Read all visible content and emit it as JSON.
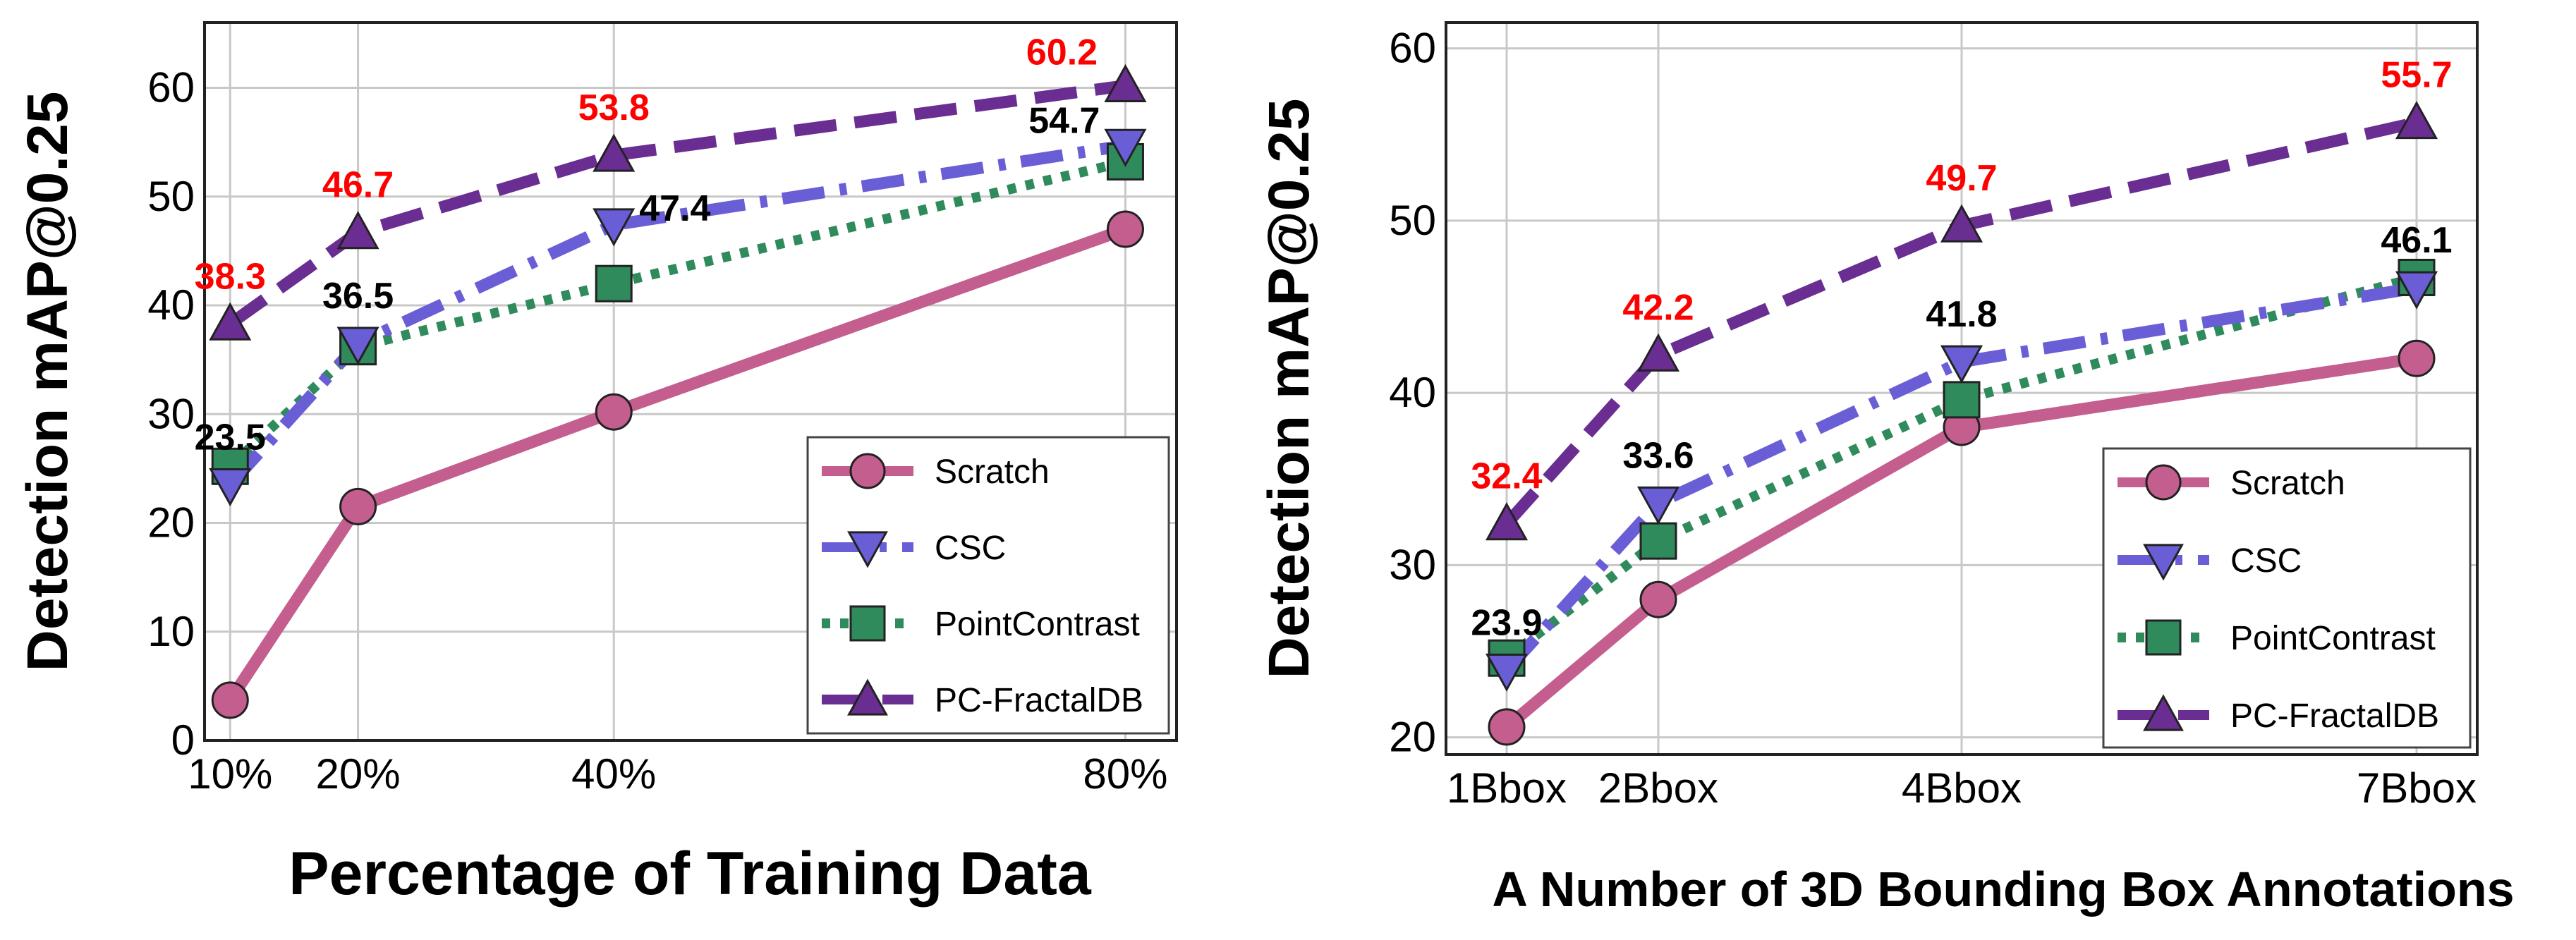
{
  "chart_data": [
    {
      "type": "line",
      "xlabel": "Percentage of Training Data",
      "ylabel": "Detection mAP@0.25",
      "categories": [
        "10%",
        "20%",
        "40%",
        "80%"
      ],
      "x": [
        10,
        20,
        40,
        80
      ],
      "xlim": [
        8,
        84
      ],
      "ylim": [
        0,
        66
      ],
      "yticks": [
        0,
        10,
        20,
        30,
        40,
        50,
        60
      ],
      "grid": true,
      "legend_position": "lower-right",
      "series": [
        {
          "name": "Scratch",
          "values": [
            3.7,
            21.5,
            30.2,
            47.0
          ]
        },
        {
          "name": "CSC",
          "values": [
            23.5,
            36.5,
            47.4,
            54.7
          ]
        },
        {
          "name": "PointContrast",
          "values": [
            25.2,
            36.2,
            42.0,
            53.2
          ]
        },
        {
          "name": "PC-FractalDB",
          "values": [
            38.3,
            46.7,
            53.8,
            60.2
          ]
        }
      ],
      "annotations": [
        {
          "text": "38.3",
          "color": "red",
          "x": 10,
          "y": 38.3,
          "place": "above"
        },
        {
          "text": "46.7",
          "color": "red",
          "x": 20,
          "y": 46.7,
          "place": "above"
        },
        {
          "text": "53.8",
          "color": "red",
          "x": 40,
          "y": 53.8,
          "place": "above"
        },
        {
          "text": "60.2",
          "color": "red",
          "x": 80,
          "y": 60.2,
          "place": "above-left"
        },
        {
          "text": "23.5",
          "color": "black",
          "x": 10,
          "y": 23.5,
          "place": "above"
        },
        {
          "text": "36.5",
          "color": "black",
          "x": 20,
          "y": 36.5,
          "place": "above"
        },
        {
          "text": "47.4",
          "color": "black",
          "x": 40,
          "y": 47.4,
          "place": "right"
        },
        {
          "text": "54.7",
          "color": "black",
          "x": 80,
          "y": 54.7,
          "place": "left"
        }
      ]
    },
    {
      "type": "line",
      "xlabel": "A Number of 3D Bounding Box Annotations",
      "ylabel": "Detection mAP@0.25",
      "categories": [
        "1Bbox",
        "2Bbox",
        "4Bbox",
        "7Bbox"
      ],
      "x": [
        1,
        2,
        4,
        7
      ],
      "xlim": [
        0.6,
        7.4
      ],
      "ylim": [
        19,
        61.5
      ],
      "yticks": [
        20,
        30,
        40,
        50,
        60
      ],
      "grid": true,
      "legend_position": "lower-right",
      "series": [
        {
          "name": "Scratch",
          "values": [
            20.6,
            28.0,
            38.0,
            42.0
          ]
        },
        {
          "name": "CSC",
          "values": [
            23.9,
            33.6,
            41.8,
            46.1
          ]
        },
        {
          "name": "PointContrast",
          "values": [
            24.6,
            31.4,
            39.6,
            46.7
          ]
        },
        {
          "name": "PC-FractalDB",
          "values": [
            32.4,
            42.2,
            49.7,
            55.7
          ]
        }
      ],
      "annotations": [
        {
          "text": "32.4",
          "color": "red",
          "x": 1,
          "y": 32.4,
          "place": "above"
        },
        {
          "text": "42.2",
          "color": "red",
          "x": 2,
          "y": 42.2,
          "place": "above"
        },
        {
          "text": "49.7",
          "color": "red",
          "x": 4,
          "y": 49.7,
          "place": "above"
        },
        {
          "text": "55.7",
          "color": "red",
          "x": 7,
          "y": 55.7,
          "place": "above"
        },
        {
          "text": "23.9",
          "color": "black",
          "x": 1,
          "y": 23.9,
          "place": "above"
        },
        {
          "text": "33.6",
          "color": "black",
          "x": 2,
          "y": 33.6,
          "place": "above"
        },
        {
          "text": "41.8",
          "color": "black",
          "x": 4,
          "y": 41.8,
          "place": "above"
        },
        {
          "text": "46.1",
          "color": "black",
          "x": 7,
          "y": 46.1,
          "place": "above"
        }
      ]
    }
  ],
  "styles": {
    "Scratch": {
      "color": "#C45E8E",
      "marker": "circle",
      "dash": "solid"
    },
    "CSC": {
      "color": "#6A5ED6",
      "marker": "triangle-down",
      "dash": "dashdot"
    },
    "PointContrast": {
      "color": "#2F8A5C",
      "marker": "square",
      "dash": "dotted"
    },
    "PC-FractalDB": {
      "color": "#6A2D91",
      "marker": "triangle-up",
      "dash": "dashed"
    },
    "highlight_red": "#FF0000"
  }
}
